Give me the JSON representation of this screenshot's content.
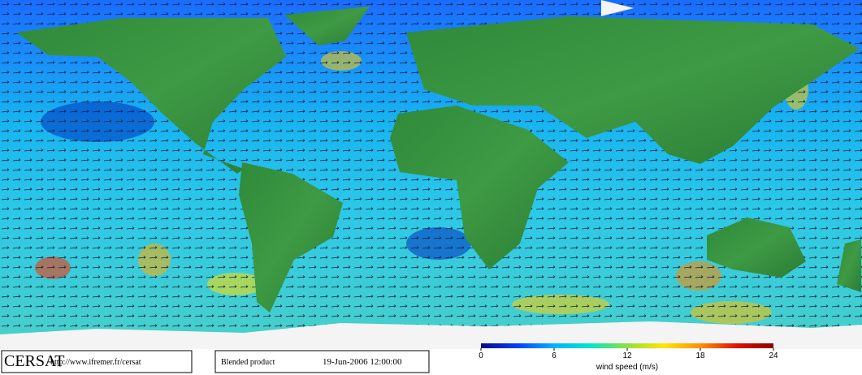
{
  "footer": {
    "logo": "CERSAT",
    "url": "http://www.ifremer.fr/cersat",
    "product": "Blended product",
    "date": "19-Jun-2006 12:00:00"
  },
  "colorbar": {
    "label": "wind speed (m/s)",
    "range": [
      0,
      24
    ],
    "ticks": [
      0,
      6,
      12,
      18,
      24
    ],
    "colors": [
      "#0a0a8c",
      "#0040ff",
      "#00b4ff",
      "#00e6c8",
      "#90e040",
      "#ffe600",
      "#ff9000",
      "#e01000",
      "#900000"
    ]
  }
}
